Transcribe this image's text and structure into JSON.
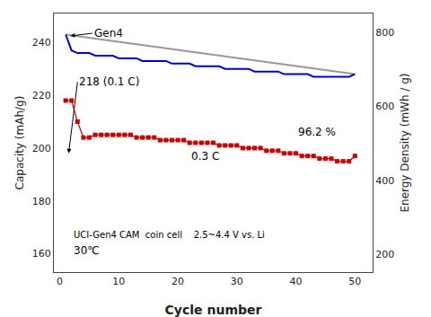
{
  "chart_data": {
    "type": "line",
    "x_label": "Cycle number",
    "y_label": "Capacity (mAh/g)",
    "y2_label": "Energy Density (mWh / g)",
    "xlim": [
      -1,
      53
    ],
    "ylim": [
      153,
      251
    ],
    "y2lim": [
      153,
      851
    ],
    "xticks": [
      0,
      10,
      20,
      30,
      40,
      50
    ],
    "yticks": [
      160,
      180,
      200,
      220,
      240
    ],
    "y2ticks": [
      200,
      400,
      600,
      800
    ],
    "grid": false,
    "series": [
      {
        "color": "#999999",
        "x": [
          1,
          50
        ],
        "values": [
          243,
          228
        ]
      },
      {
        "color": "#0000cc",
        "x": [
          1,
          2,
          3,
          4,
          5,
          6,
          7,
          8,
          9,
          10,
          11,
          12,
          13,
          14,
          15,
          16,
          17,
          18,
          19,
          20,
          21,
          22,
          23,
          24,
          25,
          26,
          27,
          28,
          29,
          30,
          31,
          32,
          33,
          34,
          35,
          36,
          37,
          38,
          39,
          40,
          41,
          42,
          43,
          44,
          45,
          46,
          47,
          48,
          49,
          50
        ],
        "values": [
          243,
          237,
          236,
          236,
          236,
          235,
          235,
          235,
          235,
          234,
          234,
          234,
          234,
          233,
          233,
          233,
          233,
          233,
          232,
          232,
          232,
          232,
          231,
          231,
          231,
          231,
          231,
          230,
          230,
          230,
          230,
          230,
          229,
          229,
          229,
          229,
          229,
          228,
          228,
          228,
          228,
          228,
          227,
          227,
          227,
          227,
          227,
          227,
          227,
          228
        ]
      },
      {
        "color": "#cc0000",
        "marker": "square",
        "x": [
          1,
          2,
          3,
          4,
          5,
          6,
          7,
          8,
          9,
          10,
          11,
          12,
          13,
          14,
          15,
          16,
          17,
          18,
          19,
          20,
          21,
          22,
          23,
          24,
          25,
          26,
          27,
          28,
          29,
          30,
          31,
          32,
          33,
          34,
          35,
          36,
          37,
          38,
          39,
          40,
          41,
          42,
          43,
          44,
          45,
          46,
          47,
          48,
          49,
          50
        ],
        "values": [
          218,
          218,
          210,
          204,
          204,
          205,
          205,
          205,
          205,
          205,
          205,
          205,
          204,
          204,
          204,
          204,
          203,
          203,
          203,
          203,
          203,
          202,
          202,
          202,
          202,
          202,
          201,
          201,
          201,
          201,
          200,
          200,
          200,
          200,
          199,
          199,
          199,
          198,
          198,
          198,
          197,
          197,
          197,
          196,
          196,
          196,
          195,
          195,
          195,
          197
        ]
      }
    ],
    "annotations": [
      {
        "text": "Gen4",
        "x": 5.5,
        "y": 243.5,
        "arrow_x": 1.8,
        "arrow_y": 242.5
      },
      {
        "text": "218 (0.1 C)",
        "x": 3.0,
        "y": 225,
        "arrow_x": 1.5,
        "arrow_y": 198
      },
      {
        "text": "0.3 C",
        "x": 22,
        "y": 197
      },
      {
        "text": "96.2 %",
        "x": 40,
        "y": 206
      },
      {
        "text": "UCI-Gen4 CAM  coin cell    2.5~4.4 V vs. Li",
        "x": 2.0,
        "y": 167
      },
      {
        "text": "30℃",
        "x": 2.0,
        "y": 161
      }
    ]
  }
}
